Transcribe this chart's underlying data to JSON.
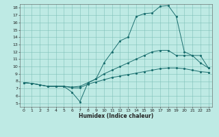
{
  "xlabel": "Humidex (Indice chaleur)",
  "bg_color": "#beeae4",
  "line_color": "#1a6e6e",
  "xlim": [
    -0.5,
    23.5
  ],
  "ylim": [
    4.5,
    18.5
  ],
  "xticks": [
    0,
    1,
    2,
    3,
    4,
    5,
    6,
    7,
    8,
    9,
    10,
    11,
    12,
    13,
    14,
    15,
    16,
    17,
    18,
    19,
    20,
    21,
    22,
    23
  ],
  "yticks": [
    5,
    6,
    7,
    8,
    9,
    10,
    11,
    12,
    13,
    14,
    15,
    16,
    17,
    18
  ],
  "curve1_x": [
    0,
    1,
    2,
    3,
    4,
    5,
    6,
    7,
    8,
    9,
    10,
    11,
    12,
    13,
    14,
    15,
    16,
    17,
    18,
    19,
    20,
    21,
    22,
    23
  ],
  "curve1_y": [
    7.8,
    7.7,
    7.5,
    7.3,
    7.3,
    7.3,
    6.5,
    5.2,
    7.8,
    8.3,
    10.5,
    12.0,
    13.5,
    14.0,
    16.8,
    17.2,
    17.3,
    18.2,
    18.3,
    16.8,
    12.0,
    11.5,
    11.5,
    9.8
  ],
  "curve2_x": [
    0,
    1,
    2,
    3,
    4,
    5,
    6,
    7,
    8,
    9,
    10,
    11,
    12,
    13,
    14,
    15,
    16,
    17,
    18,
    19,
    20,
    21,
    22,
    23
  ],
  "curve2_y": [
    7.8,
    7.7,
    7.5,
    7.3,
    7.3,
    7.3,
    7.2,
    7.3,
    7.8,
    8.3,
    9.0,
    9.5,
    10.0,
    10.5,
    11.0,
    11.5,
    12.0,
    12.2,
    12.2,
    11.5,
    11.5,
    11.5,
    10.5,
    9.8
  ],
  "curve3_x": [
    0,
    1,
    2,
    3,
    4,
    5,
    6,
    7,
    8,
    9,
    10,
    11,
    12,
    13,
    14,
    15,
    16,
    17,
    18,
    19,
    20,
    21,
    22,
    23
  ],
  "curve3_y": [
    7.8,
    7.7,
    7.5,
    7.3,
    7.3,
    7.3,
    7.1,
    7.1,
    7.6,
    7.9,
    8.2,
    8.5,
    8.7,
    8.9,
    9.1,
    9.3,
    9.5,
    9.7,
    9.8,
    9.8,
    9.7,
    9.5,
    9.3,
    9.2
  ]
}
